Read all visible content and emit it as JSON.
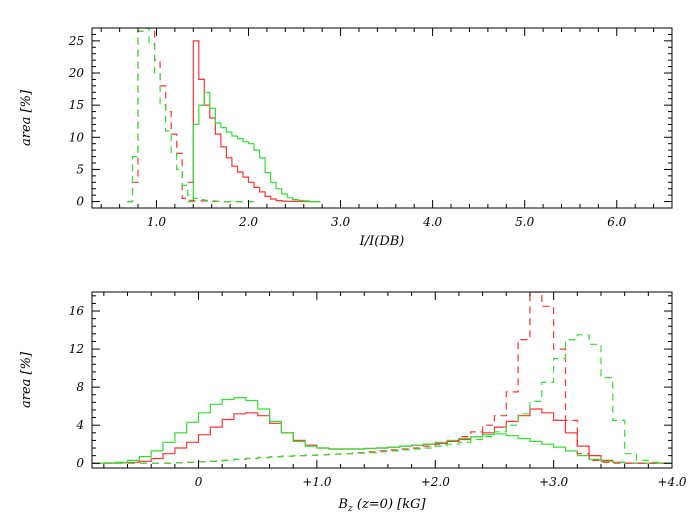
{
  "chart_data": [
    {
      "type": "step",
      "title": "",
      "xlabel": "I/I(DB)",
      "ylabel": "area [%]",
      "xlim": [
        0.3,
        6.6
      ],
      "ylim": [
        -1,
        27
      ],
      "xticks": [
        1.0,
        2.0,
        3.0,
        4.0,
        5.0,
        6.0
      ],
      "xtick_labels": [
        "1.0",
        "2.0",
        "3.0",
        "4.0",
        "5.0",
        "6.0"
      ],
      "yticks": [
        0,
        5,
        10,
        15,
        20,
        25
      ],
      "ytick_labels": [
        "0",
        "5",
        "10",
        "15",
        "20",
        "25"
      ],
      "series": [
        {
          "color": "#ff3333",
          "dash": "solid",
          "x": [
            1.34,
            1.4,
            1.46,
            1.52,
            1.58,
            1.64,
            1.7,
            1.76,
            1.82,
            1.88,
            1.94,
            2.0,
            2.06,
            2.12,
            2.18,
            2.24,
            2.3,
            2.36,
            2.42,
            2.48,
            2.54,
            2.6,
            2.66,
            2.72
          ],
          "y": [
            3.0,
            25.0,
            19.0,
            15.0,
            13.0,
            10.5,
            8.5,
            6.8,
            5.5,
            4.6,
            3.8,
            3.0,
            2.2,
            1.5,
            0.8,
            0.4,
            0.15,
            0.08,
            0.05,
            0.03,
            0.02,
            0.01,
            0.0,
            0.0
          ]
        },
        {
          "color": "#33dd33",
          "dash": "solid",
          "x": [
            1.34,
            1.4,
            1.46,
            1.52,
            1.58,
            1.64,
            1.7,
            1.76,
            1.82,
            1.88,
            1.94,
            2.0,
            2.06,
            2.12,
            2.18,
            2.24,
            2.3,
            2.36,
            2.42,
            2.48,
            2.54,
            2.6,
            2.66,
            2.72
          ],
          "y": [
            0.0,
            12.0,
            15.0,
            17.0,
            14.5,
            12.2,
            11.5,
            10.8,
            10.2,
            9.8,
            9.3,
            9.0,
            8.0,
            6.8,
            4.5,
            3.0,
            2.0,
            1.2,
            0.6,
            0.3,
            0.2,
            0.1,
            0.0,
            0.0
          ]
        },
        {
          "color": "#ff3333",
          "dash": "dashed",
          "x": [
            0.68,
            0.74,
            0.8,
            0.86,
            0.92,
            0.98,
            1.04,
            1.1,
            1.16,
            1.22,
            1.28,
            1.34,
            1.4,
            1.46,
            1.52,
            1.58,
            1.64,
            1.7,
            1.76,
            1.82,
            1.88,
            1.94,
            2.0
          ],
          "y": [
            0.0,
            3.0,
            26.5,
            27.0,
            27.0,
            22.0,
            18.0,
            14.0,
            10.5,
            7.5,
            0.5,
            0.2,
            0.1,
            0.1,
            0.1,
            0.05,
            0.05,
            0.0,
            0.0,
            0.0,
            0.0,
            0.0,
            0.0
          ]
        },
        {
          "color": "#33dd33",
          "dash": "dashed",
          "x": [
            0.68,
            0.74,
            0.8,
            0.86,
            0.92,
            0.98,
            1.04,
            1.1,
            1.16,
            1.22,
            1.28,
            1.34,
            1.4,
            1.46,
            1.52,
            1.58,
            1.64,
            1.7,
            1.76,
            1.82,
            1.88,
            1.94,
            2.0
          ],
          "y": [
            0.0,
            7.0,
            26.5,
            27.0,
            24.5,
            20.0,
            15.0,
            11.0,
            7.5,
            5.0,
            2.5,
            1.0,
            0.5,
            0.3,
            0.2,
            0.1,
            0.05,
            0.0,
            0.0,
            0.0,
            0.0,
            0.0,
            0.0
          ]
        }
      ]
    },
    {
      "type": "step",
      "title": "",
      "xlabel": "B_z (z=0) [kG]",
      "xlabel_parts": {
        "main": "B",
        "sub": "z",
        "rest": " (z=0) [kG]"
      },
      "ylabel": "area [%]",
      "xlim": [
        -0.9,
        4.0
      ],
      "ylim": [
        -0.5,
        18
      ],
      "xticks": [
        0,
        1.0,
        2.0,
        3.0,
        4.0
      ],
      "xtick_labels": [
        "0",
        "+1.0",
        "+2.0",
        "+3.0",
        "+4.0"
      ],
      "yticks": [
        0,
        4,
        8,
        12,
        16
      ],
      "ytick_labels": [
        "0",
        "4",
        "8",
        "12",
        "16"
      ],
      "series": [
        {
          "color": "#ff3333",
          "dash": "solid",
          "x": [
            -0.9,
            -0.8,
            -0.7,
            -0.6,
            -0.5,
            -0.4,
            -0.3,
            -0.2,
            -0.1,
            0.0,
            0.1,
            0.2,
            0.3,
            0.4,
            0.5,
            0.6,
            0.7,
            0.8,
            0.9,
            1.0,
            1.1,
            1.2,
            1.3,
            1.4,
            1.5,
            1.6,
            1.7,
            1.8,
            1.9,
            2.0,
            2.1,
            2.2,
            2.3,
            2.4,
            2.5,
            2.6,
            2.7,
            2.8,
            2.9,
            3.0,
            3.1,
            3.2,
            3.3,
            3.4,
            3.5,
            3.6,
            3.7,
            3.8,
            3.9
          ],
          "y": [
            0.0,
            0.0,
            0.05,
            0.1,
            0.2,
            0.5,
            1.0,
            1.6,
            2.2,
            3.0,
            3.8,
            4.6,
            5.2,
            5.3,
            5.0,
            4.2,
            3.2,
            2.4,
            1.9,
            1.6,
            1.5,
            1.5,
            1.5,
            1.55,
            1.6,
            1.7,
            1.8,
            1.9,
            2.0,
            2.1,
            2.3,
            2.5,
            2.8,
            3.2,
            3.8,
            4.4,
            5.0,
            5.7,
            5.3,
            4.5,
            3.2,
            1.8,
            0.8,
            0.3,
            0.1,
            0.0,
            0.0,
            0.0,
            0.0
          ]
        },
        {
          "color": "#33dd33",
          "dash": "solid",
          "x": [
            -0.9,
            -0.8,
            -0.7,
            -0.6,
            -0.5,
            -0.4,
            -0.3,
            -0.2,
            -0.1,
            0.0,
            0.1,
            0.2,
            0.3,
            0.4,
            0.5,
            0.6,
            0.7,
            0.8,
            0.9,
            1.0,
            1.1,
            1.2,
            1.3,
            1.4,
            1.5,
            1.6,
            1.7,
            1.8,
            1.9,
            2.0,
            2.1,
            2.2,
            2.3,
            2.4,
            2.5,
            2.6,
            2.7,
            2.8,
            2.9,
            3.0,
            3.1,
            3.2,
            3.3,
            3.4,
            3.5,
            3.6,
            3.7,
            3.8,
            3.9
          ],
          "y": [
            0.0,
            0.05,
            0.1,
            0.3,
            0.7,
            1.3,
            2.2,
            3.2,
            4.3,
            5.3,
            6.2,
            6.7,
            6.9,
            6.6,
            5.7,
            4.4,
            3.2,
            2.3,
            1.8,
            1.6,
            1.5,
            1.5,
            1.5,
            1.55,
            1.6,
            1.7,
            1.8,
            1.9,
            2.0,
            2.2,
            2.4,
            2.6,
            2.8,
            3.0,
            3.1,
            2.9,
            2.6,
            2.3,
            2.0,
            1.7,
            1.3,
            0.8,
            0.4,
            0.2,
            0.1,
            0.0,
            0.0,
            0.0,
            0.0
          ]
        },
        {
          "color": "#ff3333",
          "dash": "dashed",
          "x": [
            -0.9,
            -0.8,
            -0.7,
            -0.6,
            -0.5,
            -0.4,
            -0.3,
            -0.2,
            -0.1,
            0.0,
            0.1,
            0.2,
            0.3,
            0.4,
            0.5,
            0.6,
            0.7,
            0.8,
            0.9,
            1.0,
            1.1,
            1.2,
            1.3,
            1.4,
            1.5,
            1.6,
            1.7,
            1.8,
            1.9,
            2.0,
            2.1,
            2.2,
            2.3,
            2.4,
            2.5,
            2.6,
            2.7,
            2.8,
            2.9,
            3.0,
            3.1,
            3.2,
            3.3,
            3.4,
            3.5,
            3.6,
            3.7,
            3.8,
            3.9
          ],
          "y": [
            0.0,
            0.0,
            0.0,
            0.0,
            0.0,
            0.0,
            0.0,
            0.05,
            0.1,
            0.15,
            0.2,
            0.3,
            0.4,
            0.5,
            0.6,
            0.7,
            0.75,
            0.8,
            0.85,
            0.9,
            0.95,
            1.0,
            1.1,
            1.2,
            1.3,
            1.4,
            1.5,
            1.6,
            1.8,
            2.0,
            2.3,
            2.8,
            3.3,
            4.0,
            5.0,
            7.5,
            13.0,
            18.0,
            16.5,
            12.0,
            4.5,
            1.0,
            0.3,
            0.1,
            0.0,
            0.0,
            0.0,
            0.0,
            0.0
          ]
        },
        {
          "color": "#33dd33",
          "dash": "dashed",
          "x": [
            -0.9,
            -0.8,
            -0.7,
            -0.6,
            -0.5,
            -0.4,
            -0.3,
            -0.2,
            -0.1,
            0.0,
            0.1,
            0.2,
            0.3,
            0.4,
            0.5,
            0.6,
            0.7,
            0.8,
            0.9,
            1.0,
            1.1,
            1.2,
            1.3,
            1.4,
            1.5,
            1.6,
            1.7,
            1.8,
            1.9,
            2.0,
            2.1,
            2.2,
            2.3,
            2.4,
            2.5,
            2.6,
            2.7,
            2.8,
            2.9,
            3.0,
            3.1,
            3.2,
            3.3,
            3.4,
            3.5,
            3.6,
            3.7,
            3.8,
            3.9
          ],
          "y": [
            0.0,
            0.0,
            0.0,
            0.0,
            0.0,
            0.0,
            0.0,
            0.05,
            0.1,
            0.15,
            0.2,
            0.3,
            0.4,
            0.5,
            0.6,
            0.7,
            0.75,
            0.8,
            0.85,
            0.9,
            0.95,
            1.0,
            1.05,
            1.1,
            1.2,
            1.3,
            1.4,
            1.5,
            1.6,
            1.8,
            2.0,
            2.2,
            2.5,
            2.8,
            3.3,
            4.0,
            5.2,
            6.5,
            8.5,
            11.0,
            13.0,
            13.5,
            12.5,
            9.0,
            4.5,
            1.0,
            0.3,
            0.1,
            0.0
          ]
        }
      ]
    }
  ]
}
